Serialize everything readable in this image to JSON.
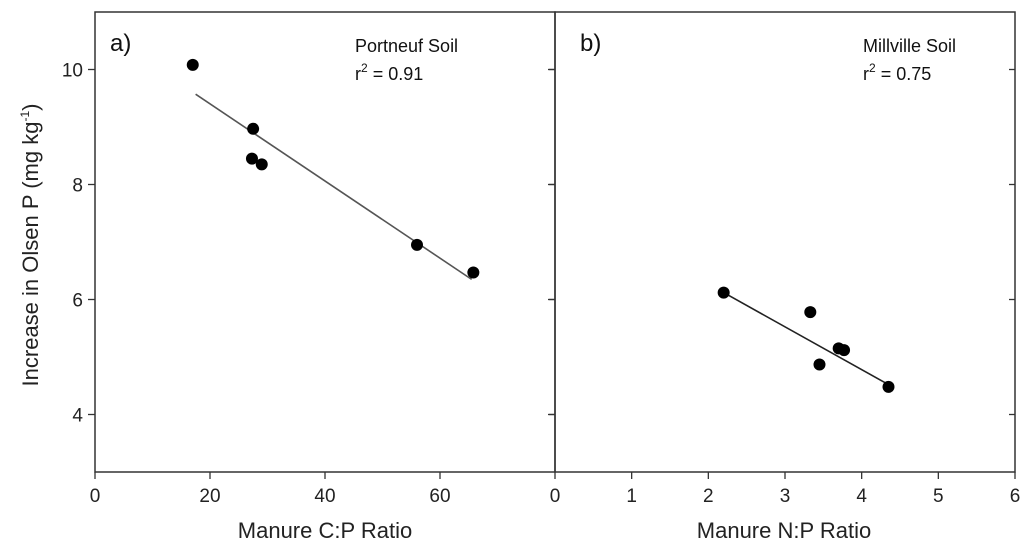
{
  "chart_data": [
    {
      "type": "scatter",
      "panel_label": "a)",
      "annotation_title": "Portneuf Soil",
      "annotation_r2_prefix": "r",
      "annotation_r2_exp": "2",
      "annotation_r2_value": " = 0.91",
      "xlabel": "Manure C:P Ratio",
      "ylabel_main": "Increase in Olsen P (mg kg",
      "ylabel_exp": "-1",
      "ylabel_close": ")",
      "xlim": [
        0,
        80
      ],
      "ylim": [
        3,
        11
      ],
      "xticks": [
        0,
        20,
        40,
        60
      ],
      "yticks": [
        4,
        6,
        8,
        10
      ],
      "x": [
        17,
        27.5,
        27.3,
        29,
        56,
        65.8
      ],
      "y": [
        10.08,
        8.97,
        8.45,
        8.35,
        6.95,
        6.47
      ],
      "fit_line": {
        "x": [
          17.5,
          65.5
        ],
        "y": [
          9.57,
          6.35
        ]
      },
      "grid": false
    },
    {
      "type": "scatter",
      "panel_label": "b)",
      "annotation_title": "Millville Soil",
      "annotation_r2_prefix": "r",
      "annotation_r2_exp": "2",
      "annotation_r2_value": " = 0.75",
      "xlabel": "Manure N:P Ratio",
      "xlim": [
        0,
        6
      ],
      "ylim": [
        3,
        11
      ],
      "xticks": [
        0,
        1,
        2,
        3,
        4,
        5,
        6
      ],
      "yticks": [
        4,
        6,
        8,
        10
      ],
      "x": [
        2.2,
        3.33,
        3.7,
        3.77,
        3.45,
        4.35
      ],
      "y": [
        6.12,
        5.78,
        5.15,
        5.12,
        4.87,
        4.48
      ],
      "fit_line": {
        "x": [
          2.2,
          4.35
        ],
        "y": [
          6.12,
          4.52
        ]
      },
      "grid": false
    }
  ]
}
